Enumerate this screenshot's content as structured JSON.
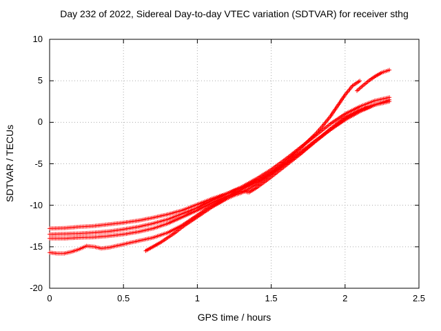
{
  "chart_data": {
    "type": "scatter",
    "title": "Day 232 of 2022, Sidereal Day-to-day VTEC variation (SDTVAR) for receiver sthg",
    "xlabel": "GPS time / hours",
    "ylabel": "SDTVAR / TECUs",
    "xlim": [
      0,
      2.5
    ],
    "ylim": [
      -20,
      10
    ],
    "xticks": [
      0,
      0.5,
      1,
      1.5,
      2,
      2.5
    ],
    "xtick_labels": [
      "0",
      "0.5",
      "1",
      "1.5",
      "2",
      "2.5"
    ],
    "yticks": [
      -20,
      -15,
      -10,
      -5,
      0,
      5,
      10
    ],
    "ytick_labels": [
      "-20",
      "-15",
      "-10",
      "-5",
      "0",
      "5",
      "10"
    ],
    "grid": true,
    "legend": "none",
    "marker": "plus",
    "colors": {
      "series": "#ff0000",
      "grid": "#aaaaaa",
      "text": "#000000",
      "border": "#000000"
    },
    "series": [
      {
        "points": [
          [
            0,
            -12.8
          ],
          [
            0.1,
            -12.75
          ],
          [
            0.2,
            -12.6
          ],
          [
            0.3,
            -12.5
          ],
          [
            0.4,
            -12.3
          ],
          [
            0.5,
            -12.1
          ],
          [
            0.6,
            -11.85
          ],
          [
            0.7,
            -11.5
          ],
          [
            0.8,
            -11.1
          ],
          [
            0.9,
            -10.6
          ],
          [
            1.0,
            -9.9
          ],
          [
            1.1,
            -9.2
          ],
          [
            1.2,
            -8.6
          ],
          [
            1.3,
            -7.9
          ],
          [
            1.4,
            -7.0
          ],
          [
            1.5,
            -6.0
          ],
          [
            1.6,
            -4.9
          ],
          [
            1.7,
            -3.6
          ],
          [
            1.8,
            -2.2
          ],
          [
            1.9,
            -0.9
          ],
          [
            2.0,
            0.4
          ],
          [
            2.1,
            1.4
          ],
          [
            2.2,
            2.1
          ],
          [
            2.3,
            2.5
          ]
        ]
      },
      {
        "points": [
          [
            0,
            -13.5
          ],
          [
            0.1,
            -13.45
          ],
          [
            0.2,
            -13.4
          ],
          [
            0.3,
            -13.3
          ],
          [
            0.4,
            -13.15
          ],
          [
            0.5,
            -12.9
          ],
          [
            0.6,
            -12.6
          ],
          [
            0.7,
            -12.2
          ],
          [
            0.8,
            -11.7
          ],
          [
            0.9,
            -11.0
          ],
          [
            1.0,
            -10.3
          ],
          [
            1.1,
            -9.4
          ],
          [
            1.2,
            -8.6
          ],
          [
            1.3,
            -7.8
          ],
          [
            1.4,
            -6.8
          ],
          [
            1.5,
            -5.7
          ],
          [
            1.6,
            -4.4
          ],
          [
            1.7,
            -3.0
          ],
          [
            1.8,
            -1.6
          ],
          [
            1.9,
            -0.2
          ],
          [
            2.0,
            1.0
          ],
          [
            2.1,
            1.9
          ],
          [
            2.2,
            2.6
          ],
          [
            2.3,
            3.0
          ]
        ]
      },
      {
        "points": [
          [
            0,
            -14.0
          ],
          [
            0.1,
            -14.0
          ],
          [
            0.2,
            -13.9
          ],
          [
            0.3,
            -13.85
          ],
          [
            0.4,
            -13.7
          ],
          [
            0.5,
            -13.5
          ],
          [
            0.6,
            -13.2
          ],
          [
            0.7,
            -12.8
          ],
          [
            0.8,
            -12.2
          ],
          [
            0.9,
            -11.4
          ],
          [
            1.0,
            -10.6
          ],
          [
            1.1,
            -9.7
          ],
          [
            1.2,
            -8.9
          ],
          [
            1.25,
            -8.6
          ],
          [
            1.3,
            -8.3
          ],
          [
            1.35,
            -8.45
          ],
          [
            1.4,
            -7.9
          ],
          [
            1.5,
            -6.6
          ],
          [
            1.6,
            -5.2
          ],
          [
            1.7,
            -3.8
          ],
          [
            1.8,
            -2.3
          ],
          [
            1.9,
            -0.8
          ],
          [
            2.0,
            0.6
          ],
          [
            2.1,
            1.5
          ],
          [
            2.15,
            1.9
          ]
        ]
      },
      {
        "points": [
          [
            0,
            -15.7
          ],
          [
            0.05,
            -15.8
          ],
          [
            0.1,
            -15.8
          ],
          [
            0.15,
            -15.6
          ],
          [
            0.2,
            -15.3
          ],
          [
            0.25,
            -14.9
          ],
          [
            0.3,
            -15.0
          ],
          [
            0.35,
            -15.2
          ],
          [
            0.4,
            -15.1
          ],
          [
            0.45,
            -14.9
          ],
          [
            0.5,
            -14.7
          ],
          [
            0.55,
            -14.5
          ],
          [
            0.6,
            -14.3
          ],
          [
            0.7,
            -13.9
          ],
          [
            0.8,
            -13.3
          ],
          [
            0.9,
            -12.4
          ],
          [
            1.0,
            -11.2
          ],
          [
            1.1,
            -10.0
          ],
          [
            1.2,
            -9.0
          ],
          [
            1.3,
            -8.1
          ],
          [
            1.4,
            -7.2
          ],
          [
            1.5,
            -6.2
          ],
          [
            1.6,
            -5.0
          ],
          [
            1.7,
            -3.7
          ],
          [
            1.8,
            -2.3
          ],
          [
            1.9,
            -0.9
          ],
          [
            2.0,
            0.3
          ],
          [
            2.1,
            1.3
          ],
          [
            2.2,
            2.1
          ],
          [
            2.3,
            2.7
          ]
        ]
      },
      {
        "points": [
          [
            0.65,
            -15.5
          ],
          [
            0.7,
            -15.0
          ],
          [
            0.75,
            -14.5
          ],
          [
            0.8,
            -13.9
          ],
          [
            0.85,
            -13.3
          ],
          [
            0.9,
            -12.6
          ],
          [
            0.95,
            -12.0
          ],
          [
            1.0,
            -11.4
          ],
          [
            1.05,
            -10.8
          ],
          [
            1.1,
            -10.2
          ],
          [
            1.15,
            -9.7
          ],
          [
            1.2,
            -9.2
          ],
          [
            1.25,
            -8.8
          ],
          [
            1.3,
            -8.5
          ],
          [
            1.4,
            -7.5
          ],
          [
            1.5,
            -6.2
          ],
          [
            1.6,
            -4.7
          ],
          [
            1.7,
            -3.1
          ],
          [
            1.8,
            -1.4
          ],
          [
            1.85,
            -0.4
          ],
          [
            1.9,
            0.7
          ],
          [
            1.95,
            2.0
          ],
          [
            2.0,
            3.3
          ],
          [
            2.05,
            4.4
          ],
          [
            2.1,
            5.0
          ]
        ]
      },
      {
        "points": [
          [
            2.08,
            3.8
          ],
          [
            2.12,
            4.4
          ],
          [
            2.16,
            5.0
          ],
          [
            2.2,
            5.5
          ],
          [
            2.25,
            6.0
          ],
          [
            2.3,
            6.3
          ]
        ]
      }
    ]
  }
}
